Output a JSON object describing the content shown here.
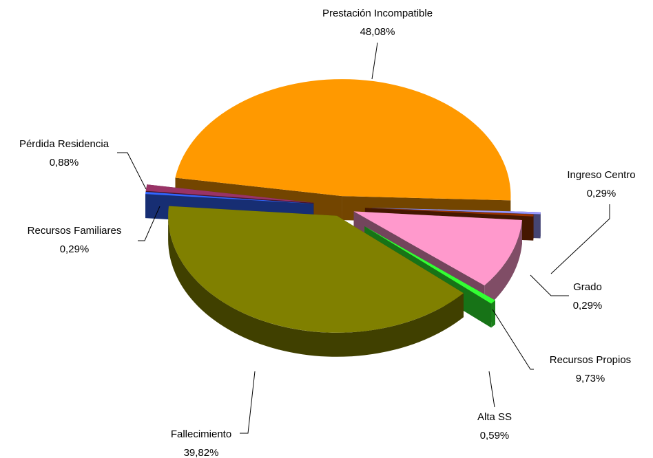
{
  "chart_data": {
    "type": "pie",
    "categories": [
      "Prestación Incompatible",
      "Ingreso Centro",
      "Grado",
      "Recursos Propios",
      "Alta SS",
      "Fallecimiento",
      "Recursos Familiares",
      "Pérdida Residencia"
    ],
    "values": [
      48.08,
      0.29,
      0.29,
      9.73,
      0.59,
      39.82,
      0.29,
      0.88
    ],
    "value_labels": [
      "48,08%",
      "0,29%",
      "0,29%",
      "9,73%",
      "0,59%",
      "39,82%",
      "0,29%",
      "0,88%"
    ],
    "colors": [
      "#FF9900",
      "#9999FF",
      "#993300",
      "#FF99CC",
      "#33FF33",
      "#808000",
      "#3366FF",
      "#993366"
    ]
  }
}
